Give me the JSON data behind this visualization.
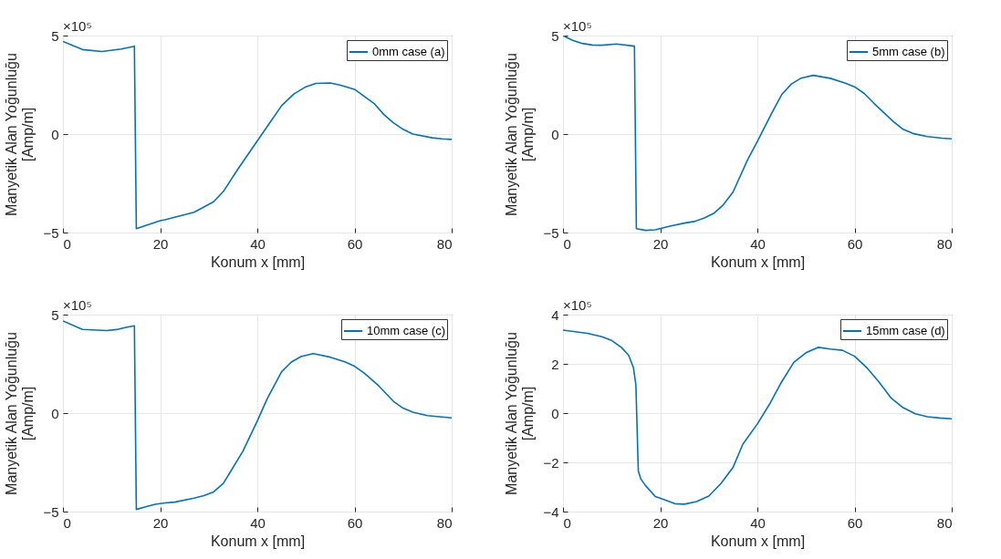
{
  "chart_data": [
    {
      "type": "line",
      "xlabel": "Konum x [mm]",
      "ylabel": "Manyetik Alan Yoğunluğu\n[Amp/m]",
      "xlim": [
        0,
        80
      ],
      "xticks": [
        0,
        20,
        40,
        60,
        80
      ],
      "ylim": [
        -5,
        5
      ],
      "yticks": [
        -5,
        0,
        5
      ],
      "grid": true,
      "legend": "top right",
      "annotations": [
        "×10⁵"
      ],
      "series": [
        {
          "name": "0mm case (a)",
          "color": "#0072bd",
          "x": [
            0,
            4,
            8,
            12,
            14.7,
            15.1,
            20,
            21,
            27,
            31,
            33,
            36,
            40,
            42,
            45,
            47.5,
            50,
            52,
            55,
            57,
            60,
            64,
            66,
            68,
            70,
            72,
            76,
            78,
            80
          ],
          "values": [
            4.7,
            4.29,
            4.19,
            4.32,
            4.46,
            -4.8,
            -4.4,
            -4.35,
            -3.97,
            -3.44,
            -2.92,
            -1.78,
            -0.35,
            0.37,
            1.44,
            2.03,
            2.4,
            2.57,
            2.59,
            2.49,
            2.27,
            1.56,
            1.0,
            0.57,
            0.24,
            0.0,
            -0.19,
            -0.24,
            -0.27
          ]
        }
      ]
    },
    {
      "type": "line",
      "xlabel": "Konum x [mm]",
      "ylabel": "Manyetik Alan Yoğunluğu\n[Amp/m]",
      "xlim": [
        0,
        80
      ],
      "xticks": [
        0,
        20,
        40,
        60,
        80
      ],
      "ylim": [
        -5,
        5
      ],
      "yticks": [
        -5,
        0,
        5
      ],
      "grid": true,
      "legend": "top right",
      "annotations": [
        "×10⁵"
      ],
      "series": [
        {
          "name": "5mm case (b)",
          "color": "#0072bd",
          "x": [
            0,
            2,
            4,
            6,
            8,
            11,
            14.7,
            15.1,
            17,
            19,
            22,
            25,
            27,
            29,
            31,
            33,
            35,
            38,
            40,
            43,
            45,
            47,
            49,
            51.5,
            55,
            58,
            60,
            62,
            64,
            68,
            70,
            72,
            75,
            78,
            80
          ],
          "values": [
            5.0,
            4.76,
            4.6,
            4.52,
            4.51,
            4.57,
            4.46,
            -4.8,
            -4.89,
            -4.86,
            -4.68,
            -4.52,
            -4.44,
            -4.27,
            -4.03,
            -3.59,
            -2.94,
            -1.3,
            -0.38,
            1.08,
            2.0,
            2.54,
            2.84,
            2.98,
            2.83,
            2.59,
            2.4,
            2.06,
            1.56,
            0.63,
            0.24,
            0.03,
            -0.13,
            -0.21,
            -0.24
          ]
        }
      ]
    },
    {
      "type": "line",
      "xlabel": "Konum x [mm]",
      "ylabel": "Manyetik Alan Yoğunluğu\n[Amp/m]",
      "xlim": [
        0,
        80
      ],
      "xticks": [
        0,
        20,
        40,
        60,
        80
      ],
      "ylim": [
        -5,
        5
      ],
      "yticks": [
        -5,
        0,
        5
      ],
      "grid": true,
      "legend": "top right",
      "annotations": [
        "×10⁵"
      ],
      "series": [
        {
          "name": "10mm case (c)",
          "color": "#0072bd",
          "x": [
            0,
            4,
            9,
            11,
            13,
            14.7,
            15.1,
            17,
            19,
            21,
            23,
            27,
            29,
            31,
            33,
            37,
            40,
            42,
            45,
            47,
            49,
            51.5,
            55,
            58,
            60,
            62,
            65,
            68,
            70,
            72,
            75,
            80
          ],
          "values": [
            4.68,
            4.25,
            4.19,
            4.24,
            4.35,
            4.43,
            -4.89,
            -4.76,
            -4.63,
            -4.56,
            -4.52,
            -4.32,
            -4.19,
            -4.0,
            -3.57,
            -1.95,
            -0.4,
            0.71,
            2.1,
            2.59,
            2.87,
            3.02,
            2.84,
            2.6,
            2.38,
            2.03,
            1.38,
            0.6,
            0.25,
            0.05,
            -0.13,
            -0.24
          ]
        }
      ]
    },
    {
      "type": "line",
      "xlabel": "Konum x [mm]",
      "ylabel": "Manyetik Alan Yoğunluğu\n[Amp/m]",
      "xlim": [
        0,
        80
      ],
      "xticks": [
        0,
        20,
        40,
        60,
        80
      ],
      "ylim": [
        -4,
        4
      ],
      "yticks": [
        -4,
        -2,
        0,
        2,
        4
      ],
      "grid": true,
      "legend": "top right",
      "annotations": [
        "×10⁵"
      ],
      "series": [
        {
          "name": "15mm case (d)",
          "color": "#0072bd",
          "x": [
            0,
            5,
            8,
            10,
            12,
            13.5,
            14.5,
            15,
            15.5,
            16,
            17,
            19,
            21,
            23,
            25,
            27.5,
            30,
            32.5,
            35,
            37,
            40,
            42.5,
            45,
            47.5,
            50,
            52.5,
            55,
            57.5,
            60,
            62.5,
            65,
            67.5,
            70,
            72.5,
            75,
            77.5,
            80
          ],
          "values": [
            3.37,
            3.24,
            3.1,
            2.95,
            2.67,
            2.35,
            1.84,
            1.14,
            -2.35,
            -2.67,
            -2.95,
            -3.39,
            -3.53,
            -3.68,
            -3.7,
            -3.59,
            -3.37,
            -2.86,
            -2.2,
            -1.27,
            -0.44,
            0.36,
            1.27,
            2.06,
            2.45,
            2.67,
            2.6,
            2.55,
            2.31,
            1.85,
            1.27,
            0.62,
            0.22,
            -0.03,
            -0.15,
            -0.2,
            -0.23
          ]
        }
      ]
    }
  ]
}
